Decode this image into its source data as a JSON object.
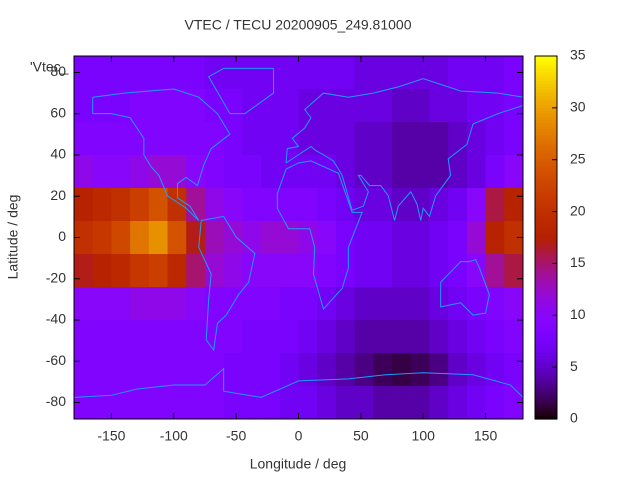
{
  "chart_data": {
    "type": "heatmap",
    "title": "VTEC / TECU 20200905_249.81000",
    "key_title": "'Vtec_",
    "x_label": "Longitude / deg",
    "y_label": "Latitude / deg",
    "x": [
      -172.5,
      -157.5,
      -142.5,
      -127.5,
      -112.5,
      -97.5,
      -82.5,
      -67.5,
      -52.5,
      -37.5,
      -22.5,
      -7.5,
      7.5,
      22.5,
      37.5,
      52.5,
      67.5,
      82.5,
      97.5,
      112.5,
      127.5,
      142.5,
      157.5,
      172.5
    ],
    "y": [
      80,
      64,
      48,
      32,
      16,
      0,
      -16,
      -32,
      -48,
      -64,
      -80
    ],
    "values": [
      [
        8,
        8,
        8,
        8,
        8,
        8,
        8,
        7,
        7,
        7,
        7,
        7,
        7,
        7,
        7,
        6,
        6,
        6,
        6,
        6,
        7,
        7,
        7,
        8
      ],
      [
        8,
        8,
        8,
        9,
        9,
        9,
        9,
        8,
        8,
        7,
        7,
        7,
        6,
        6,
        6,
        6,
        6,
        5,
        5,
        6,
        6,
        7,
        7,
        8
      ],
      [
        9,
        9,
        9,
        9,
        9,
        9,
        9,
        9,
        8,
        7,
        7,
        7,
        6,
        6,
        6,
        5,
        5,
        4,
        4,
        4,
        5,
        6,
        7,
        8
      ],
      [
        11,
        10,
        10,
        11,
        12,
        12,
        10,
        9,
        8,
        8,
        7,
        7,
        7,
        7,
        6,
        5,
        5,
        4,
        4,
        4,
        5,
        6,
        8,
        10
      ],
      [
        18,
        19,
        20,
        22,
        24,
        20,
        14,
        11,
        10,
        9,
        9,
        9,
        9,
        8,
        7,
        6,
        6,
        5,
        5,
        6,
        7,
        10,
        16,
        18
      ],
      [
        20,
        21,
        23,
        27,
        29,
        24,
        17,
        13,
        12,
        11,
        12,
        12,
        11,
        10,
        8,
        7,
        7,
        6,
        6,
        7,
        8,
        12,
        18,
        20
      ],
      [
        17,
        18,
        19,
        21,
        22,
        19,
        15,
        12,
        11,
        10,
        10,
        10,
        10,
        9,
        8,
        7,
        7,
        6,
        6,
        7,
        8,
        10,
        14,
        16
      ],
      [
        10,
        10,
        10,
        11,
        11,
        11,
        10,
        9,
        9,
        9,
        9,
        8,
        8,
        7,
        6,
        5,
        5,
        5,
        5,
        6,
        7,
        8,
        9,
        10
      ],
      [
        9,
        9,
        9,
        9,
        9,
        9,
        9,
        9,
        9,
        8,
        8,
        8,
        7,
        6,
        5,
        4,
        4,
        4,
        4,
        5,
        6,
        7,
        8,
        9
      ],
      [
        9,
        9,
        9,
        9,
        9,
        9,
        9,
        9,
        8,
        8,
        8,
        7,
        6,
        5,
        4,
        3,
        2,
        1.5,
        2,
        3,
        5,
        6,
        7,
        8
      ],
      [
        9,
        9,
        9,
        9,
        9,
        9,
        9,
        9,
        8,
        8,
        8,
        7,
        7,
        6,
        5,
        5,
        4,
        4,
        4,
        5,
        6,
        7,
        8,
        9
      ]
    ],
    "xlim": [
      -180,
      180
    ],
    "ylim": [
      -88,
      88
    ],
    "xticks": [
      -150,
      -100,
      -50,
      0,
      50,
      100,
      150
    ],
    "yticks": [
      -80,
      -60,
      -40,
      -20,
      0,
      20,
      40,
      60,
      80
    ],
    "zlim": [
      0,
      35
    ],
    "zticks": [
      0,
      5,
      10,
      15,
      20,
      25,
      30,
      35
    ]
  }
}
